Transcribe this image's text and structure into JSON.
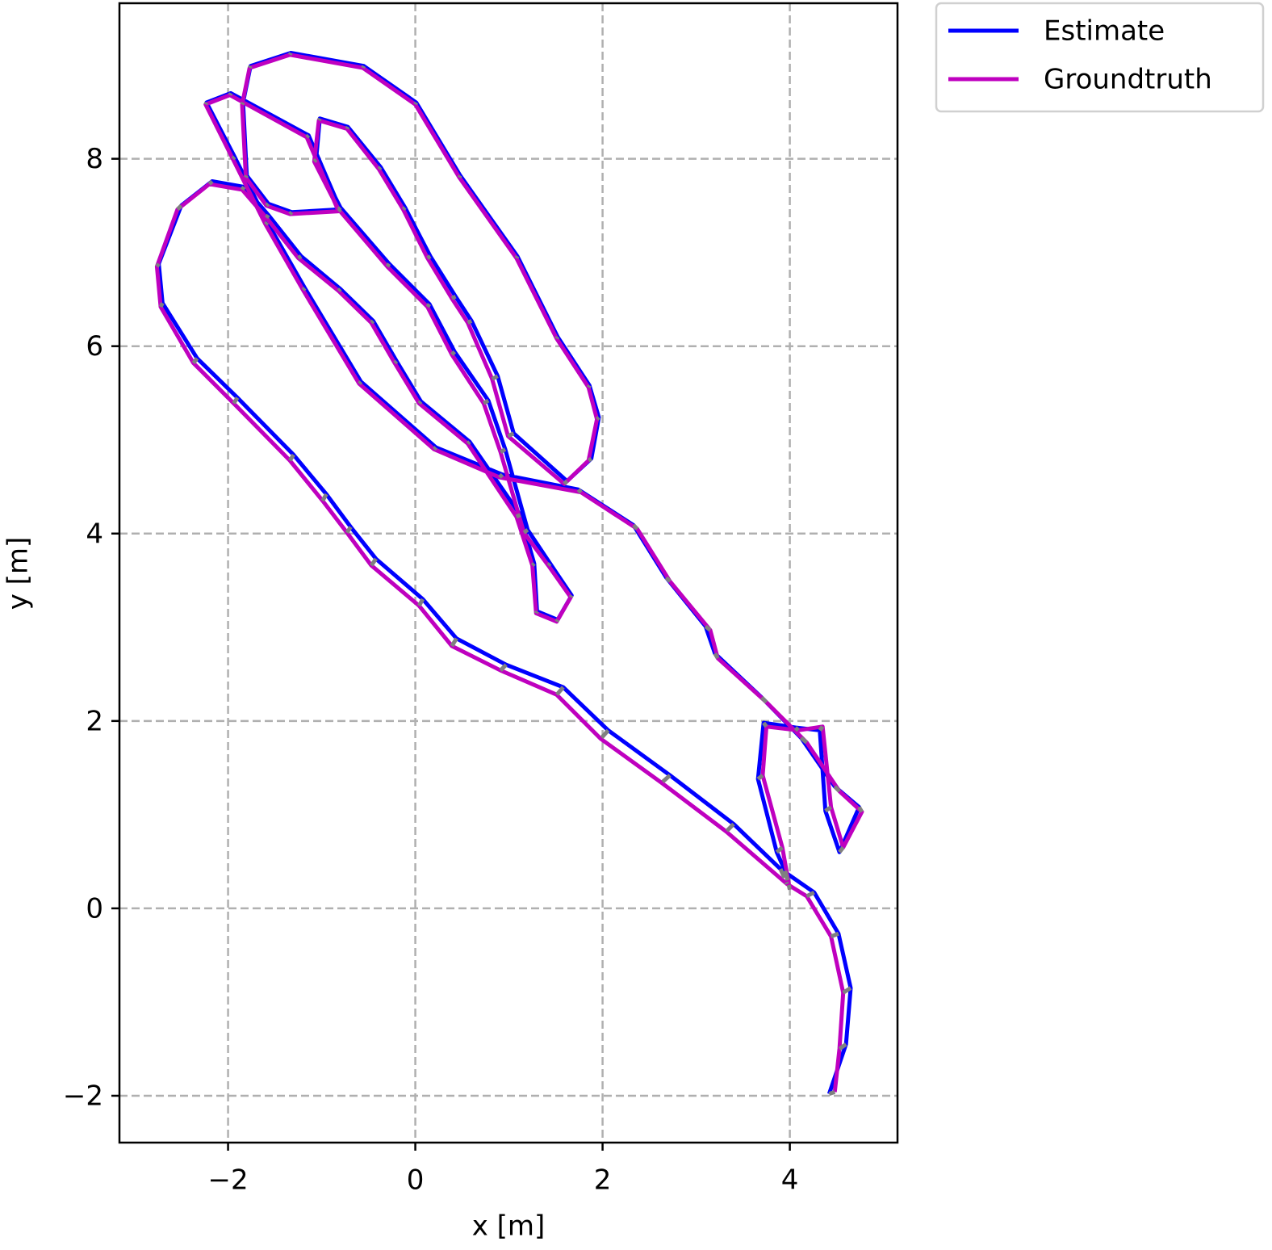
{
  "chart_data": {
    "type": "trajectory",
    "xlabel": "x [m]",
    "ylabel": "y [m]",
    "xlim": [
      -3.16,
      5.15
    ],
    "ylim": [
      -2.5,
      9.66
    ],
    "xticks": [
      {
        "value": -2,
        "label": "−2"
      },
      0,
      2,
      4
    ],
    "yticks": [
      {
        "value": -2,
        "label": "−2"
      },
      0,
      2,
      4,
      6,
      8
    ],
    "grid": true,
    "legend": "outside upper right",
    "series": [
      {
        "name": "Estimate",
        "color": "#0000ff",
        "x": [
          4.42,
          4.6,
          4.65,
          4.52,
          4.26,
          3.9,
          3.4,
          2.72,
          2.06,
          1.58,
          0.97,
          0.44,
          0.08,
          -0.42,
          -0.69,
          -0.95,
          -1.3,
          -1.9,
          -2.33,
          -2.7,
          -2.74,
          -2.5,
          -2.17,
          -1.83,
          -1.57,
          -1.22,
          -0.8,
          -0.45,
          -0.2,
          0.06,
          0.58,
          1.12,
          1.27,
          1.3,
          1.52,
          1.67,
          1.44,
          1.2,
          0.96,
          0.78,
          0.42,
          0.15,
          -0.28,
          -0.8,
          -1.06,
          -1.02,
          -0.72,
          -0.37,
          -0.11,
          0.16,
          0.43,
          0.6,
          0.88,
          1.05,
          1.62,
          1.88,
          1.96,
          1.86,
          1.52,
          1.09,
          0.48,
          0.01,
          -0.55,
          -1.33,
          -1.76,
          -1.84,
          -1.8,
          -1.57,
          -1.32,
          -0.8,
          -1.14,
          -1.97,
          -2.23,
          -1.93,
          -1.58,
          -1.18,
          -0.58,
          0.22,
          0.93,
          1.74,
          2.33,
          2.68,
          3.1,
          3.2,
          3.7,
          4.12,
          4.48,
          4.74,
          4.53,
          4.38,
          4.32,
          4.06,
          3.72,
          3.66,
          3.86,
          3.95
        ],
        "values": [
          -1.98,
          -1.45,
          -0.85,
          -0.27,
          0.17,
          0.42,
          0.9,
          1.42,
          1.9,
          2.36,
          2.6,
          2.88,
          3.3,
          3.73,
          4.07,
          4.42,
          4.84,
          5.45,
          5.87,
          6.46,
          6.88,
          7.5,
          7.76,
          7.7,
          7.4,
          6.96,
          6.61,
          6.27,
          5.84,
          5.41,
          4.98,
          4.2,
          3.68,
          3.17,
          3.08,
          3.34,
          3.68,
          4.04,
          4.9,
          5.42,
          5.94,
          6.45,
          6.88,
          7.48,
          7.99,
          8.43,
          8.34,
          7.91,
          7.48,
          6.96,
          6.53,
          6.27,
          5.68,
          5.07,
          4.56,
          4.8,
          5.24,
          5.58,
          6.1,
          6.96,
          7.82,
          8.6,
          8.99,
          9.13,
          8.99,
          8.6,
          7.82,
          7.52,
          7.43,
          7.46,
          8.25,
          8.7,
          8.6,
          8.02,
          7.32,
          6.62,
          5.62,
          4.92,
          4.63,
          4.47,
          4.09,
          3.53,
          3.01,
          2.72,
          2.25,
          1.82,
          1.3,
          1.08,
          0.6,
          1.04,
          1.9,
          1.93,
          1.98,
          1.38,
          0.6,
          0.4
        ]
      },
      {
        "name": "Groundtruth",
        "color": "#bf00bf",
        "x": [
          4.48,
          4.53,
          4.57,
          4.44,
          4.18,
          3.97,
          3.32,
          2.63,
          1.98,
          1.51,
          0.91,
          0.39,
          0.04,
          -0.47,
          -0.73,
          -0.99,
          -1.34,
          -1.94,
          -2.37,
          -2.72,
          -2.76,
          -2.54,
          -2.2,
          -1.85,
          -1.59,
          -1.25,
          -0.82,
          -0.47,
          -0.22,
          0.04,
          0.56,
          1.08,
          1.25,
          1.29,
          1.51,
          1.66,
          1.42,
          1.16,
          0.91,
          0.73,
          0.39,
          0.13,
          -0.3,
          -0.82,
          -1.08,
          -1.03,
          -0.73,
          -0.39,
          -0.13,
          0.13,
          0.39,
          0.56,
          0.82,
          0.99,
          1.59,
          1.85,
          1.94,
          1.85,
          1.51,
          1.08,
          0.47,
          0,
          -0.56,
          -1.34,
          -1.77,
          -1.85,
          -1.81,
          -1.59,
          -1.34,
          -0.82,
          -1.16,
          -1.98,
          -2.24,
          -1.95,
          -1.6,
          -1.2,
          -0.6,
          0.2,
          0.9,
          1.77,
          2.37,
          2.72,
          3.15,
          3.23,
          3.75,
          4.18,
          4.53,
          4.77,
          4.57,
          4.44,
          4.35,
          4.09,
          3.75,
          3.71,
          3.92,
          4.0
        ],
        "values": [
          -1.96,
          -1.5,
          -0.9,
          -0.3,
          0.13,
          0.26,
          0.82,
          1.34,
          1.81,
          2.28,
          2.54,
          2.8,
          3.23,
          3.66,
          4.01,
          4.35,
          4.78,
          5.39,
          5.82,
          6.42,
          6.85,
          7.46,
          7.73,
          7.67,
          7.37,
          6.94,
          6.59,
          6.25,
          5.82,
          5.39,
          4.96,
          4.18,
          3.66,
          3.15,
          3.06,
          3.32,
          3.66,
          4.01,
          4.87,
          5.39,
          5.91,
          6.42,
          6.85,
          7.46,
          7.97,
          8.41,
          8.32,
          7.89,
          7.46,
          6.94,
          6.51,
          6.25,
          5.65,
          5.04,
          4.53,
          4.78,
          5.22,
          5.56,
          6.08,
          6.94,
          7.8,
          8.58,
          8.97,
          9.11,
          8.97,
          8.58,
          7.8,
          7.5,
          7.41,
          7.44,
          8.23,
          8.68,
          8.58,
          8.0,
          7.3,
          6.6,
          5.6,
          4.9,
          4.6,
          4.44,
          4.05,
          3.49,
          2.97,
          2.67,
          2.2,
          1.77,
          1.25,
          1.03,
          0.65,
          1.08,
          1.94,
          1.9,
          1.94,
          1.42,
          0.65,
          0.2
        ]
      }
    ]
  }
}
